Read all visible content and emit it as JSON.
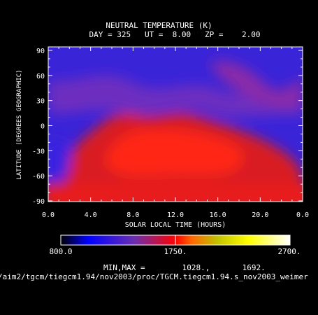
{
  "chart_data": {
    "type": "heatmap",
    "title": "NEUTRAL TEMPERATURE (K)",
    "subtitle": "DAY = 325   UT =  8.00   ZP =    2.00",
    "xlabel": "SOLAR LOCAL TIME (HOURS)",
    "ylabel": "LATITUDE (DEGREES GEOGRAPHIC)",
    "x_ticks": [
      "0.0",
      "4.0",
      "8.0",
      "12.0",
      "16.0",
      "20.0",
      "0.0"
    ],
    "y_ticks": [
      "90",
      "60",
      "30",
      "0",
      "-30",
      "-60",
      "-90"
    ],
    "xlim": [
      0,
      24
    ],
    "ylim": [
      -90,
      90
    ],
    "colorbar": {
      "labels": [
        "800.0",
        "1750.",
        "2700."
      ],
      "range": [
        800,
        2700
      ],
      "colors": [
        "#000000",
        "#0000ff",
        "#6a2fb0",
        "#ff0000",
        "#ff6600",
        "#c0c000",
        "#ffff00",
        "#ffffff"
      ]
    },
    "minmax_text": "MIN,MAX =        1028.,       1692.",
    "file_path": "/aim2/tgcm/tiegcm1.94/nov2003/proc/TGCM.tiegcm1.94.s_nov2003_weimer",
    "colors": {
      "cold": "#3522e0",
      "mid": "#7a2cb8",
      "warm": "#e81818",
      "hot": "#ff2a1a"
    }
  }
}
